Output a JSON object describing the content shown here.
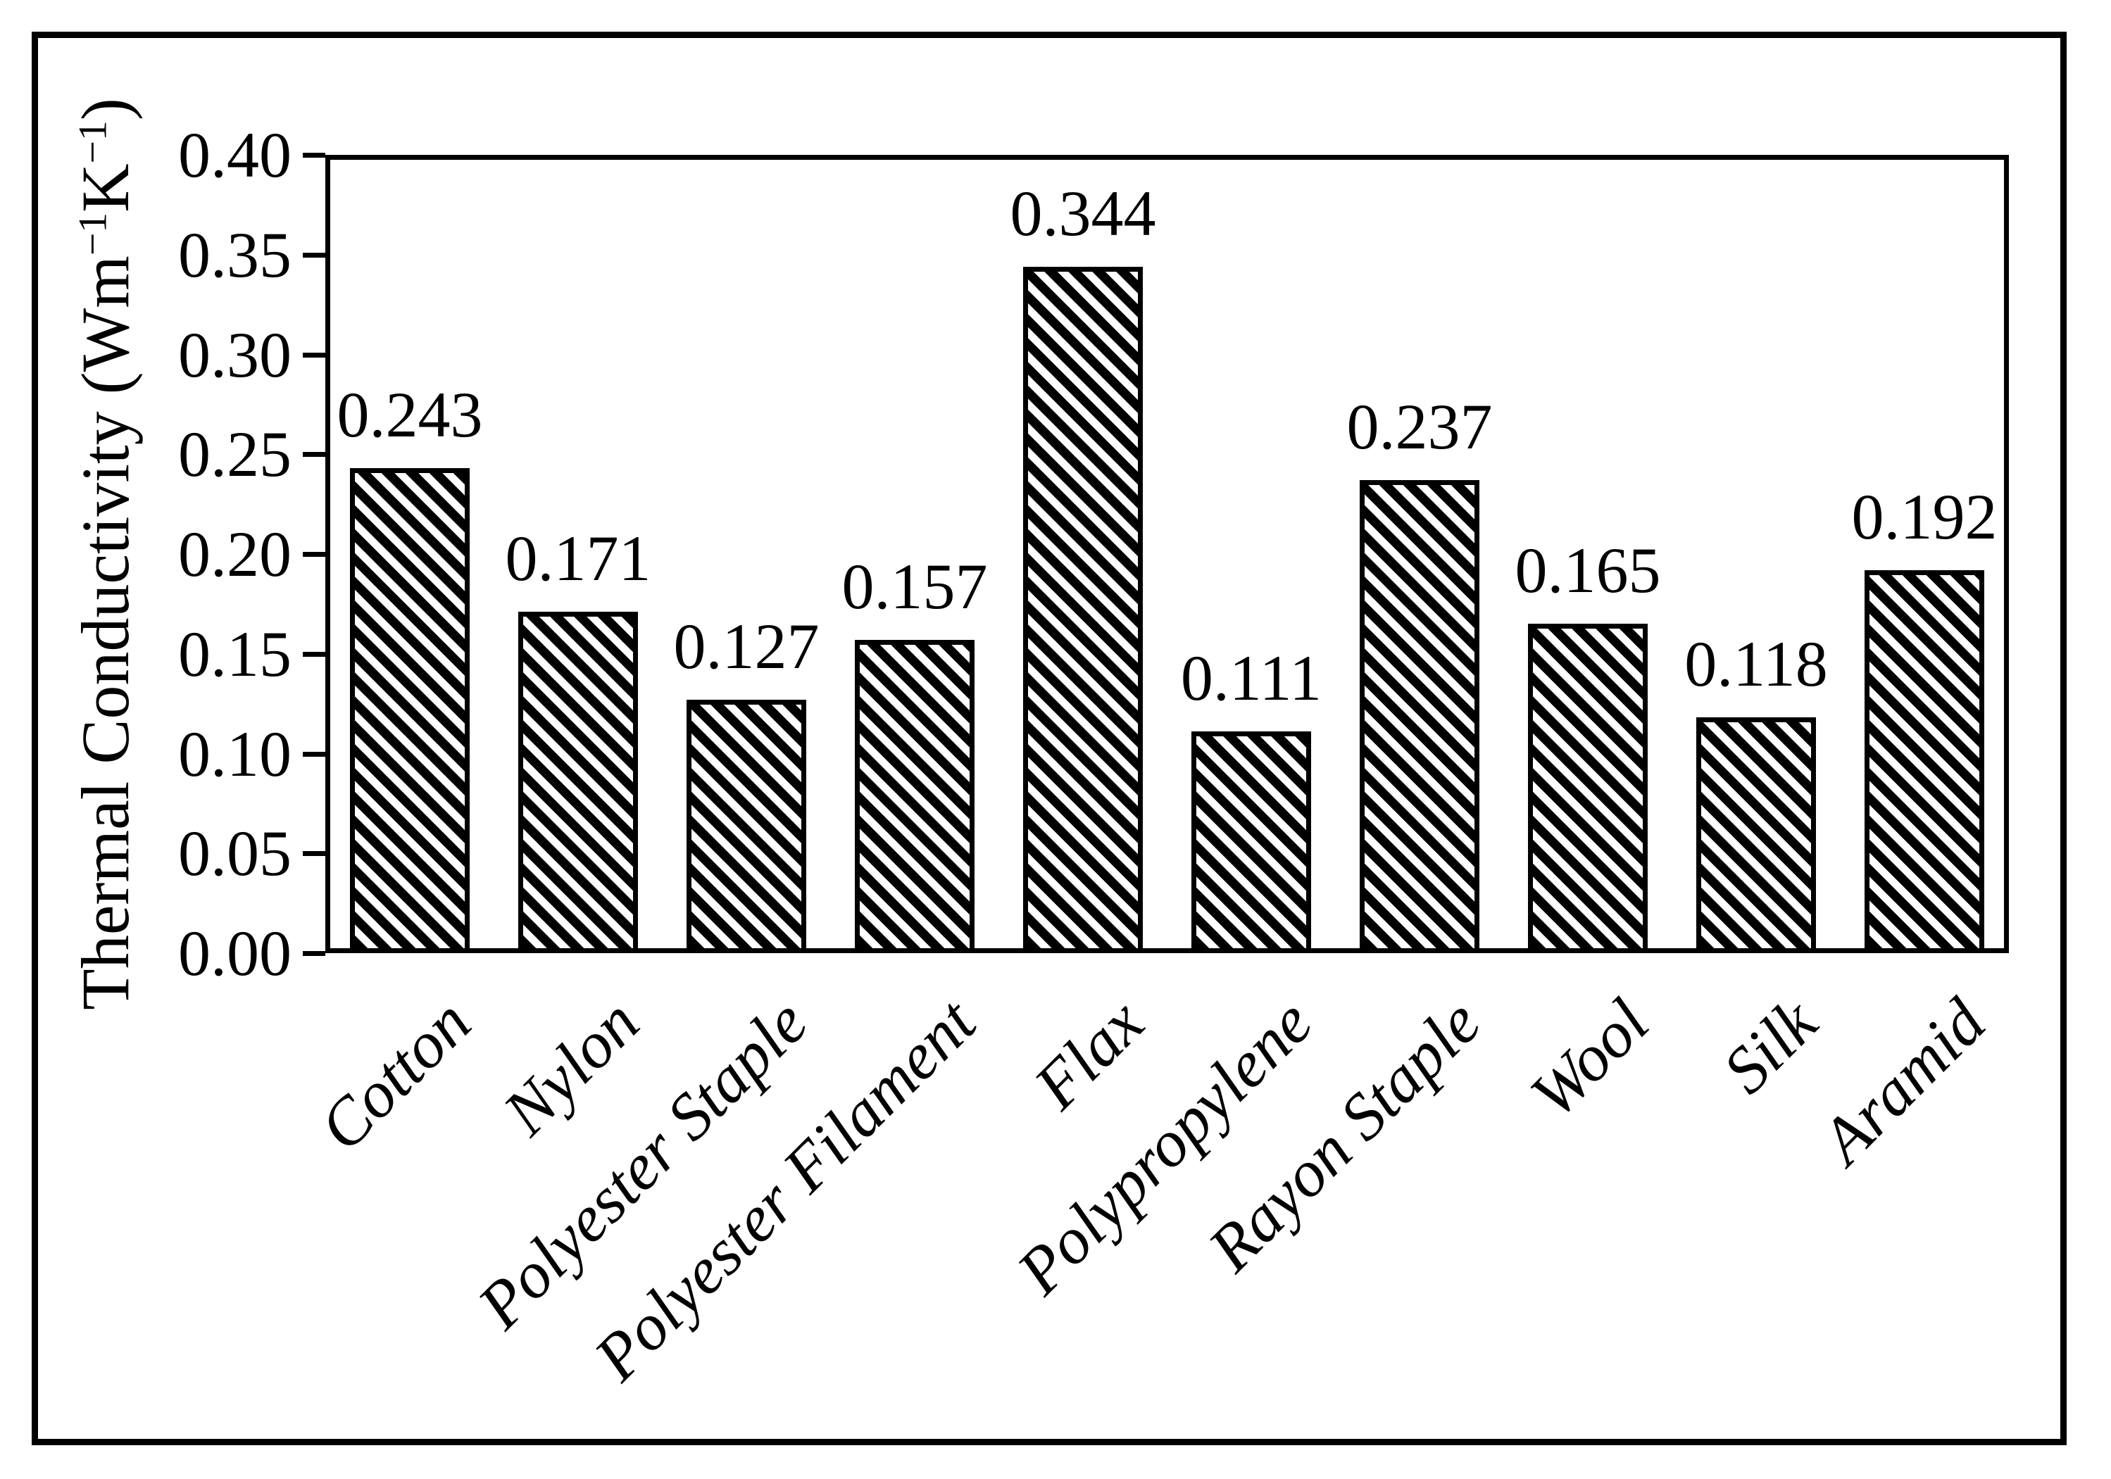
{
  "figure": {
    "background": "#ffffff",
    "frame_color": "#000000"
  },
  "chart_data": {
    "type": "bar",
    "title": "",
    "categories": [
      "Cotton",
      "Nylon",
      "Polyester Staple",
      "Polyester Filament",
      "Flax",
      "Polypropylene",
      "Rayon Staple",
      "Wool",
      "Silk",
      "Aramid"
    ],
    "values": [
      0.243,
      0.171,
      0.127,
      0.157,
      0.344,
      0.111,
      0.237,
      0.165,
      0.118,
      0.192
    ],
    "value_labels": [
      "0.243",
      "0.171",
      "0.127",
      "0.157",
      "0.344",
      "0.111",
      "0.237",
      "0.165",
      "0.118",
      "0.192"
    ],
    "ylabel_plain": "Thermal Conductivity (Wm−1K−1)",
    "ylabel": {
      "prefix": "Thermal Conductivity (Wm",
      "sup1": "−1",
      "k": "K",
      "sup2": "−1",
      "close": ")"
    },
    "xlabel": "",
    "y_ticks": [
      "0.40",
      "0.35",
      "0.30",
      "0.25",
      "0.20",
      "0.15",
      "0.10",
      "0.05",
      "0.00"
    ],
    "ylim": [
      0,
      0.4
    ],
    "y_tick_step": 0.05,
    "grid": false,
    "legend_position": "none",
    "bar_pattern": "diagonal-hatch-down",
    "bar_stroke_color": "#000000",
    "bar_hatch_dark": "#000000",
    "bar_hatch_light": "#ffffff"
  }
}
